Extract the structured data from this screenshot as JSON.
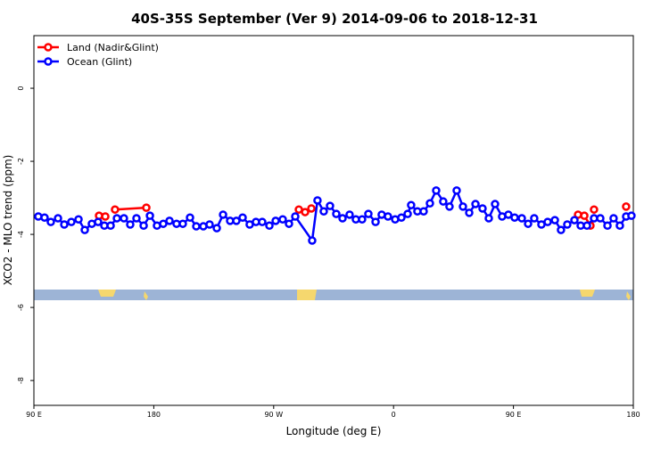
{
  "chart_data": {
    "type": "line",
    "title": "40S-35S September (Ver 9)   2014-09-06 to 2018-12-31",
    "x_label": "Longitude (deg E)",
    "y_label": "XCO2 - MLO trend (ppm)",
    "xlim": [
      90,
      540
    ],
    "xticks": [
      {
        "value": 90,
        "label": "90 E"
      },
      {
        "value": 180,
        "label": "180"
      },
      {
        "value": 270,
        "label": "90 W"
      },
      {
        "value": 360,
        "label": "0"
      },
      {
        "value": 450,
        "label": "90 E"
      },
      {
        "value": 540,
        "label": "180"
      }
    ],
    "ylim": [
      -8.68,
      1.44
    ],
    "yticks": [
      0,
      -2,
      -4,
      -6,
      -8
    ],
    "legend": "top-left",
    "series": [
      {
        "name": "Land (Nadir&Glint)",
        "color": "#ff0000",
        "x": [
          138.9,
          143.6,
          null,
          150.9,
          174.4,
          null,
          288.9,
          293.6,
          298.3,
          null,
          498.5,
          503.2,
          507.8,
          null,
          510.5,
          null,
          534.6
        ],
        "values": [
          -3.49,
          -3.51,
          null,
          -3.32,
          -3.27,
          null,
          -3.32,
          -3.39,
          -3.29,
          null,
          -3.46,
          -3.49,
          -3.76,
          null,
          -3.32,
          null,
          -3.24
        ]
      },
      {
        "name": "Ocean (Glint)",
        "color": "#0000ff",
        "x": [
          93.3,
          98.0,
          102.7,
          108.1,
          112.8,
          118.1,
          123.5,
          128.2,
          133.5,
          138.2,
          142.9,
          147.6,
          152.3,
          157.6,
          162.3,
          167.0,
          172.4,
          177.1,
          182.4,
          187.1,
          191.8,
          197.1,
          201.8,
          207.2,
          211.9,
          217.2,
          221.9,
          227.3,
          232.0,
          237.3,
          242.0,
          246.7,
          252.0,
          256.7,
          261.4,
          266.8,
          271.5,
          276.8,
          281.5,
          286.2,
          298.9,
          302.9,
          307.6,
          312.3,
          317.0,
          321.7,
          327.0,
          331.7,
          336.4,
          341.1,
          346.5,
          351.1,
          355.8,
          361.2,
          365.9,
          370.6,
          373.2,
          377.9,
          382.6,
          387.3,
          392.0,
          397.3,
          402.0,
          407.4,
          412.1,
          416.8,
          421.5,
          426.8,
          431.5,
          436.2,
          441.5,
          446.2,
          450.9,
          456.3,
          461.0,
          465.6,
          471.0,
          475.7,
          481.1,
          485.7,
          490.4,
          495.8,
          500.5,
          505.2,
          510.5,
          515.2,
          520.6,
          525.2,
          529.9,
          534.6,
          538.6
        ],
        "values": [
          -3.51,
          -3.54,
          -3.66,
          -3.56,
          -3.73,
          -3.66,
          -3.59,
          -3.88,
          -3.71,
          -3.66,
          -3.76,
          -3.76,
          -3.56,
          -3.56,
          -3.73,
          -3.56,
          -3.76,
          -3.49,
          -3.76,
          -3.71,
          -3.63,
          -3.71,
          -3.71,
          -3.54,
          -3.78,
          -3.78,
          -3.73,
          -3.83,
          -3.46,
          -3.63,
          -3.63,
          -3.54,
          -3.73,
          -3.66,
          -3.66,
          -3.76,
          -3.63,
          -3.59,
          -3.71,
          -3.51,
          -4.17,
          -3.07,
          -3.37,
          -3.22,
          -3.44,
          -3.56,
          -3.46,
          -3.59,
          -3.59,
          -3.44,
          -3.66,
          -3.46,
          -3.51,
          -3.59,
          -3.54,
          -3.44,
          -3.2,
          -3.37,
          -3.37,
          -3.15,
          -2.8,
          -3.1,
          -3.24,
          -2.8,
          -3.24,
          -3.41,
          -3.17,
          -3.29,
          -3.56,
          -3.17,
          -3.51,
          -3.46,
          -3.54,
          -3.56,
          -3.71,
          -3.56,
          -3.73,
          -3.66,
          -3.61,
          -3.88,
          -3.73,
          -3.61,
          -3.76,
          -3.76,
          -3.56,
          -3.56,
          -3.76,
          -3.56,
          -3.76,
          -3.51,
          -3.49
        ]
      }
    ]
  }
}
